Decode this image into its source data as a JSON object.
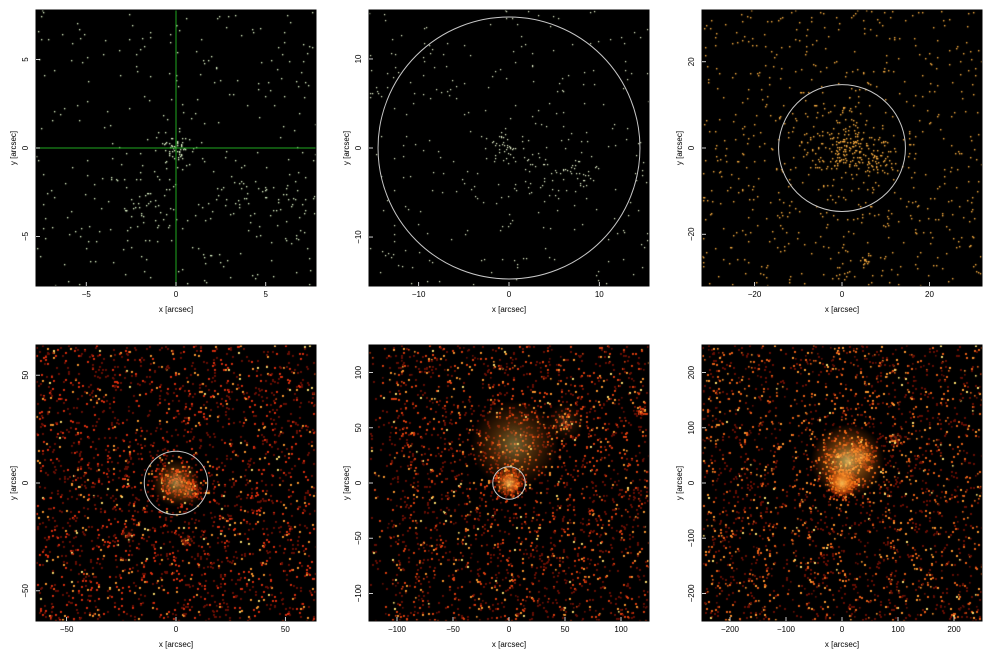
{
  "figure": {
    "layout": "2 rows x 3 columns",
    "background": "#ffffff",
    "axes_text_color": "#000000"
  },
  "chart_data": [
    {
      "type": "heatmap",
      "title": "",
      "xlabel": "x [arcsec]",
      "ylabel": "y [arcsec]",
      "xlim": [
        -7.8,
        7.8
      ],
      "ylim": [
        -7.8,
        7.8
      ],
      "xticks": [
        -5,
        0,
        5
      ],
      "yticks": [
        -5,
        0,
        5
      ],
      "xtick_labels": [
        "−5",
        "0",
        "5"
      ],
      "ytick_labels": [
        "−5",
        "0",
        "5"
      ],
      "grid": false,
      "background_color": "#000000",
      "point_color": "#e8ffd0",
      "count_density": "very sparse",
      "overlay": {
        "kind": "crosshair",
        "x": 0,
        "y": 0,
        "color": "#1fa81f"
      },
      "source_clumps": [
        {
          "x": 0,
          "y": 0,
          "sigma": 0.5,
          "weight": 0.12
        },
        {
          "x": 6.5,
          "y": -3.0,
          "sigma": 1.0,
          "weight": 0.08
        },
        {
          "x": 3.5,
          "y": -2.8,
          "sigma": 1.2,
          "weight": 0.07
        },
        {
          "x": -1.5,
          "y": -3.0,
          "sigma": 1.2,
          "weight": 0.06
        }
      ]
    },
    {
      "type": "heatmap",
      "title": "",
      "xlabel": "x [arcsec]",
      "ylabel": "y [arcsec]",
      "xlim": [
        -15.5,
        15.5
      ],
      "ylim": [
        -15.5,
        15.5
      ],
      "xticks": [
        -10,
        0,
        10
      ],
      "yticks": [
        -10,
        0,
        10
      ],
      "xtick_labels": [
        "−10",
        "0",
        "10"
      ],
      "ytick_labels": [
        "−10",
        "0",
        "10"
      ],
      "grid": false,
      "background_color": "#000000",
      "point_color": "#f2ffd6",
      "count_density": "sparse",
      "overlay": {
        "kind": "circle",
        "x": 0,
        "y": 0,
        "radius": 14.5,
        "color": "#c8c8c8"
      },
      "source_clumps": [
        {
          "x": 0,
          "y": 0,
          "sigma": 1.0,
          "weight": 0.12
        },
        {
          "x": 7.5,
          "y": -3.0,
          "sigma": 1.5,
          "weight": 0.08
        },
        {
          "x": 3.0,
          "y": -3.0,
          "sigma": 2.0,
          "weight": 0.07
        }
      ]
    },
    {
      "type": "heatmap",
      "title": "",
      "xlabel": "x [arcsec]",
      "ylabel": "y [arcsec]",
      "xlim": [
        -32,
        32
      ],
      "ylim": [
        -32,
        32
      ],
      "xticks": [
        -20,
        0,
        20
      ],
      "yticks": [
        -20,
        0,
        20
      ],
      "xtick_labels": [
        "−20",
        "0",
        "20"
      ],
      "ytick_labels": [
        "−20",
        "0",
        "20"
      ],
      "grid": false,
      "background_color": "#000000",
      "point_color": "#ffb040",
      "count_density": "moderate",
      "overlay": {
        "kind": "circle",
        "x": 0,
        "y": 0,
        "radius": 14.5,
        "color": "#c8c8c8"
      },
      "source_clumps": [
        {
          "x": 0,
          "y": 0,
          "sigma": 4.0,
          "weight": 0.18
        },
        {
          "x": 7.0,
          "y": -3.0,
          "sigma": 2.5,
          "weight": 0.07
        },
        {
          "x": 5.0,
          "y": -26.0,
          "sigma": 0.6,
          "weight": 0.01
        }
      ]
    },
    {
      "type": "heatmap",
      "title": "",
      "xlabel": "x [arcsec]",
      "ylabel": "y [arcsec]",
      "xlim": [
        -64,
        64
      ],
      "ylim": [
        -64,
        64
      ],
      "xticks": [
        -50,
        0,
        50
      ],
      "yticks": [
        -50,
        0,
        50
      ],
      "xtick_labels": [
        "−50",
        "0",
        "50"
      ],
      "ytick_labels": [
        "−50",
        "0",
        "50"
      ],
      "grid": false,
      "background_color": "#000000",
      "point_color": "#e03010",
      "count_density": "dense",
      "overlay": {
        "kind": "circle",
        "x": 0,
        "y": 0,
        "radius": 14.5,
        "color": "#c8c8c8"
      },
      "source_clumps": [
        {
          "x": 0,
          "y": 0,
          "sigma": 5.0,
          "weight": 0.06
        },
        {
          "x": 6.0,
          "y": -4.0,
          "sigma": 3.0,
          "weight": 0.03
        },
        {
          "x": -22.0,
          "y": -24.0,
          "sigma": 1.5,
          "weight": 0.01
        },
        {
          "x": 5.0,
          "y": -27.0,
          "sigma": 1.5,
          "weight": 0.01
        }
      ]
    },
    {
      "type": "heatmap",
      "title": "",
      "xlabel": "x [arcsec]",
      "ylabel": "y [arcsec]",
      "xlim": [
        -125,
        125
      ],
      "ylim": [
        -125,
        125
      ],
      "xticks": [
        -100,
        -50,
        0,
        50,
        100
      ],
      "yticks": [
        -100,
        -50,
        0,
        50,
        100
      ],
      "xtick_labels": [
        "−100",
        "−50",
        "0",
        "50",
        "100"
      ],
      "ytick_labels": [
        "−100",
        "−50",
        "0",
        "50",
        "100"
      ],
      "grid": false,
      "background_color": "#000000",
      "point_color": "#e04010",
      "count_density": "dense",
      "overlay": {
        "kind": "circle",
        "x": 0,
        "y": 0,
        "radius": 14.5,
        "color": "#c8c8c8"
      },
      "source_clumps": [
        {
          "x": 0,
          "y": 0,
          "sigma": 6.0,
          "weight": 0.08
        },
        {
          "x": 5.0,
          "y": 35.0,
          "sigma": 18.0,
          "weight": 0.05
        },
        {
          "x": 50.0,
          "y": 55.0,
          "sigma": 8.0,
          "weight": 0.02
        },
        {
          "x": 118.0,
          "y": 65.0,
          "sigma": 2.0,
          "weight": 0.01
        }
      ],
      "dark_stripe_x": [
        -125,
        -108
      ]
    },
    {
      "type": "heatmap",
      "title": "",
      "xlabel": "x [arcsec]",
      "ylabel": "y [arcsec]",
      "xlim": [
        -250,
        250
      ],
      "ylim": [
        -250,
        250
      ],
      "xticks": [
        -200,
        -100,
        0,
        100,
        200
      ],
      "yticks": [
        -200,
        -100,
        0,
        100,
        200
      ],
      "xtick_labels": [
        "−200",
        "−100",
        "0",
        "100",
        "200"
      ],
      "ytick_labels": [
        "−200",
        "−100",
        "0",
        "100",
        "200"
      ],
      "grid": false,
      "background_color": "#000000",
      "point_color": "#e86018",
      "count_density": "very dense",
      "overlay": {
        "kind": "none"
      },
      "source_clumps": [
        {
          "x": 0,
          "y": 0,
          "sigma": 12.0,
          "weight": 0.1
        },
        {
          "x": 10.0,
          "y": 40.0,
          "sigma": 30.0,
          "weight": 0.08
        },
        {
          "x": 35.0,
          "y": 50.0,
          "sigma": 12.0,
          "weight": 0.03
        },
        {
          "x": 95.0,
          "y": 80.0,
          "sigma": 6.0,
          "weight": 0.01
        }
      ],
      "dark_stripe_x": [
        -115,
        -90
      ]
    }
  ]
}
